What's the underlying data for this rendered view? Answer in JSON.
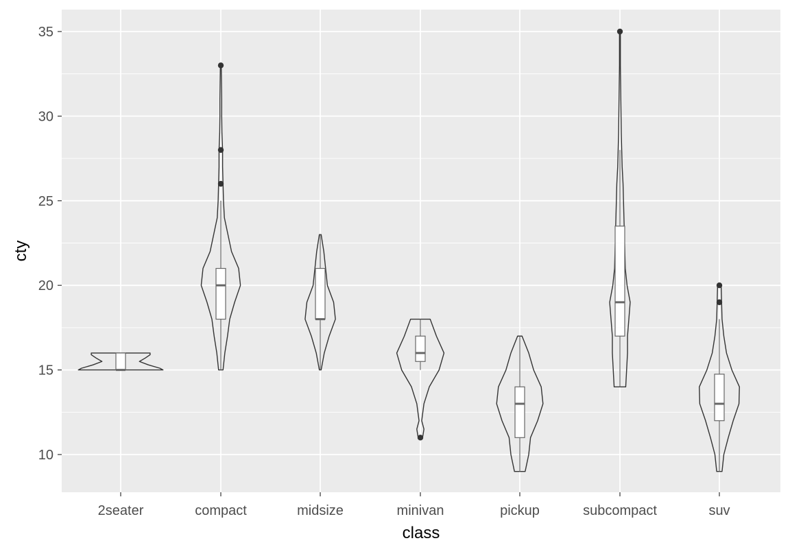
{
  "chart_data": {
    "type": "violin",
    "title": "",
    "xlabel": "class",
    "ylabel": "cty",
    "ylim": [
      8.2,
      36.3
    ],
    "yticks": [
      10,
      15,
      20,
      25,
      30,
      35
    ],
    "ytick_labels": [
      "10",
      "15",
      "20",
      "25",
      "30",
      "35"
    ],
    "grid": true,
    "colors": {
      "panel": "#ebebeb",
      "grid_major": "#ffffff",
      "violin_stroke": "#333333",
      "box_stroke": "#666666",
      "box_fill": "#ffffff",
      "outlier": "#333333"
    },
    "categories": [
      "2seater",
      "compact",
      "midsize",
      "minivan",
      "pickup",
      "subcompact",
      "suv"
    ],
    "series": [
      {
        "name": "2seater",
        "box": {
          "ymin": 15,
          "q1": 15,
          "median": 15,
          "q3": 16,
          "ymax": 16
        },
        "outliers": [],
        "density": [
          [
            15,
            0.95
          ],
          [
            15.1,
            0.88
          ],
          [
            15.3,
            0.62
          ],
          [
            15.5,
            0.42
          ],
          [
            15.7,
            0.55
          ],
          [
            15.9,
            0.66
          ],
          [
            16,
            0.66
          ]
        ]
      },
      {
        "name": "compact",
        "box": {
          "ymin": 15,
          "q1": 18,
          "median": 20,
          "q3": 21,
          "ymax": 25
        },
        "outliers": [
          26,
          28,
          33
        ],
        "density": [
          [
            15,
            0.05
          ],
          [
            16,
            0.09
          ],
          [
            17,
            0.15
          ],
          [
            18,
            0.2
          ],
          [
            19,
            0.31
          ],
          [
            20,
            0.44
          ],
          [
            21,
            0.4
          ],
          [
            22,
            0.24
          ],
          [
            23,
            0.16
          ],
          [
            24,
            0.08
          ],
          [
            25,
            0.06
          ],
          [
            26,
            0.05
          ],
          [
            27,
            0.04
          ],
          [
            28,
            0.04
          ],
          [
            29,
            0.025
          ],
          [
            30,
            0.02
          ],
          [
            31,
            0.02
          ],
          [
            32,
            0.015
          ],
          [
            33,
            0.01
          ]
        ]
      },
      {
        "name": "midsize",
        "box": {
          "ymin": 15,
          "q1": 18,
          "median": 18,
          "q3": 21,
          "ymax": 23
        },
        "outliers": [],
        "density": [
          [
            15,
            0.02
          ],
          [
            16,
            0.09
          ],
          [
            17,
            0.2
          ],
          [
            18,
            0.34
          ],
          [
            19,
            0.3
          ],
          [
            20,
            0.16
          ],
          [
            21,
            0.12
          ],
          [
            22,
            0.08
          ],
          [
            23,
            0.02
          ]
        ]
      },
      {
        "name": "minivan",
        "box": {
          "ymin": 15,
          "q1": 15.5,
          "median": 16,
          "q3": 17,
          "ymax": 18
        },
        "outliers": [
          11
        ],
        "density": [
          [
            11,
            0.05
          ],
          [
            11.5,
            0.08
          ],
          [
            12,
            0.03
          ],
          [
            13,
            0.08
          ],
          [
            14,
            0.2
          ],
          [
            15,
            0.42
          ],
          [
            16,
            0.53
          ],
          [
            17,
            0.36
          ],
          [
            18,
            0.22
          ]
        ]
      },
      {
        "name": "pickup",
        "box": {
          "ymin": 9,
          "q1": 11,
          "median": 13,
          "q3": 14,
          "ymax": 17
        },
        "outliers": [],
        "density": [
          [
            9,
            0.12
          ],
          [
            10,
            0.2
          ],
          [
            11,
            0.24
          ],
          [
            12,
            0.4
          ],
          [
            13,
            0.52
          ],
          [
            14,
            0.48
          ],
          [
            15,
            0.31
          ],
          [
            16,
            0.2
          ],
          [
            17,
            0.05
          ]
        ]
      },
      {
        "name": "subcompact",
        "box": {
          "ymin": 14,
          "q1": 17,
          "median": 19,
          "q3": 23.5,
          "ymax": 28
        },
        "outliers": [
          35
        ],
        "density": [
          [
            14,
            0.13
          ],
          [
            15,
            0.15
          ],
          [
            16,
            0.17
          ],
          [
            17,
            0.17
          ],
          [
            18,
            0.2
          ],
          [
            19,
            0.23
          ],
          [
            20,
            0.16
          ],
          [
            21,
            0.12
          ],
          [
            22,
            0.11
          ],
          [
            23,
            0.1
          ],
          [
            24,
            0.09
          ],
          [
            25,
            0.08
          ],
          [
            26,
            0.07
          ],
          [
            27,
            0.05
          ],
          [
            28,
            0.04
          ],
          [
            29,
            0.03
          ],
          [
            30,
            0.025
          ],
          [
            31,
            0.02
          ],
          [
            32,
            0.015
          ],
          [
            33,
            0.01
          ],
          [
            34,
            0.01
          ],
          [
            35,
            0.01
          ]
        ]
      },
      {
        "name": "suv",
        "box": {
          "ymin": 9,
          "q1": 12,
          "median": 13,
          "q3": 14.75,
          "ymax": 18
        },
        "outliers": [
          19,
          20
        ],
        "density": [
          [
            9,
            0.06
          ],
          [
            10,
            0.1
          ],
          [
            11,
            0.2
          ],
          [
            12,
            0.31
          ],
          [
            13,
            0.44
          ],
          [
            14,
            0.45
          ],
          [
            15,
            0.28
          ],
          [
            16,
            0.16
          ],
          [
            17,
            0.1
          ],
          [
            18,
            0.06
          ],
          [
            19,
            0.05
          ],
          [
            20,
            0.04
          ]
        ]
      }
    ]
  }
}
